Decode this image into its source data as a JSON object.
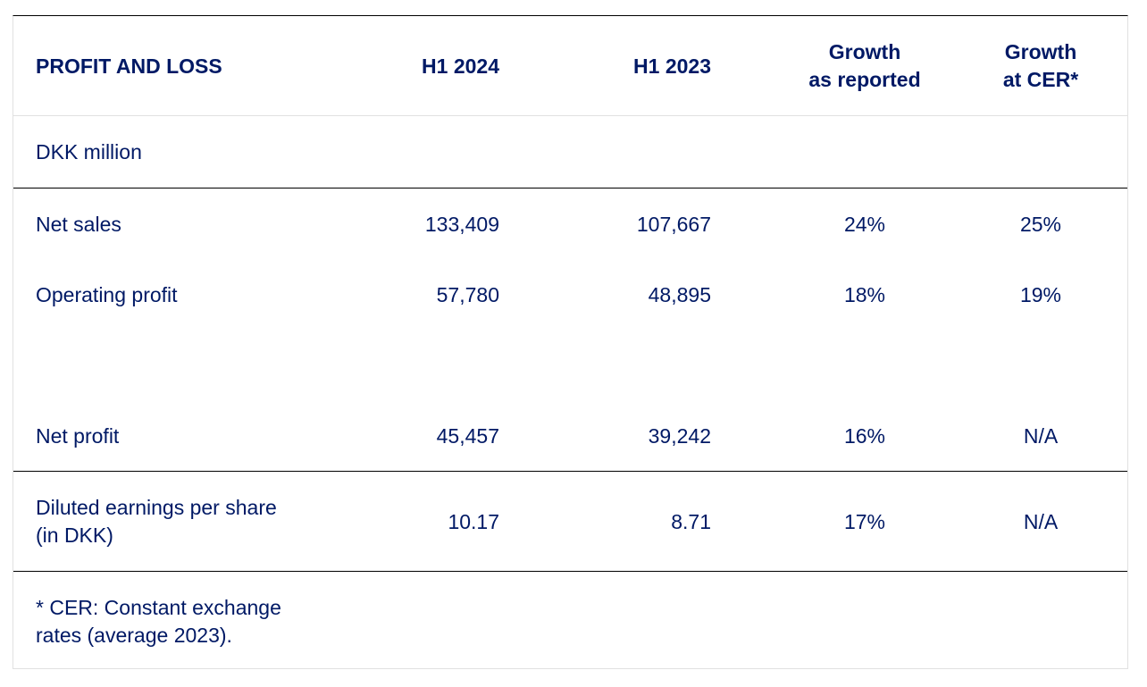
{
  "header": {
    "title": "PROFIT AND LOSS",
    "col_h1_2024": "H1 2024",
    "col_h1_2023": "H1 2023",
    "col_growth_line1": "Growth",
    "col_growth_line2": "as reported",
    "col_cer_line1": "Growth",
    "col_cer_line2": "at CER*"
  },
  "unit_label": "DKK million",
  "rows": [
    {
      "label": "Net sales",
      "h1_2024": "133,409",
      "h1_2023": "107,667",
      "growth": "24%",
      "cer": "25%"
    },
    {
      "label": "Operating profit",
      "h1_2024": "57,780",
      "h1_2023": "48,895",
      "growth": "18%",
      "cer": "19%"
    },
    {
      "label": "Net profit",
      "h1_2024": "45,457",
      "h1_2023": "39,242",
      "growth": "16%",
      "cer": "N/A"
    }
  ],
  "eps_row": {
    "label_line1": "Diluted earnings per share",
    "label_line2": "(in DKK)",
    "h1_2024": "10.17",
    "h1_2023": "8.71",
    "growth": "17%",
    "cer": "N/A"
  },
  "footnote": {
    "line1": "* CER: Constant exchange",
    "line2": "rates (average 2023)."
  },
  "colors": {
    "text": "#001965",
    "rule_strong": "#000000",
    "rule_light": "#e1e1e1"
  }
}
